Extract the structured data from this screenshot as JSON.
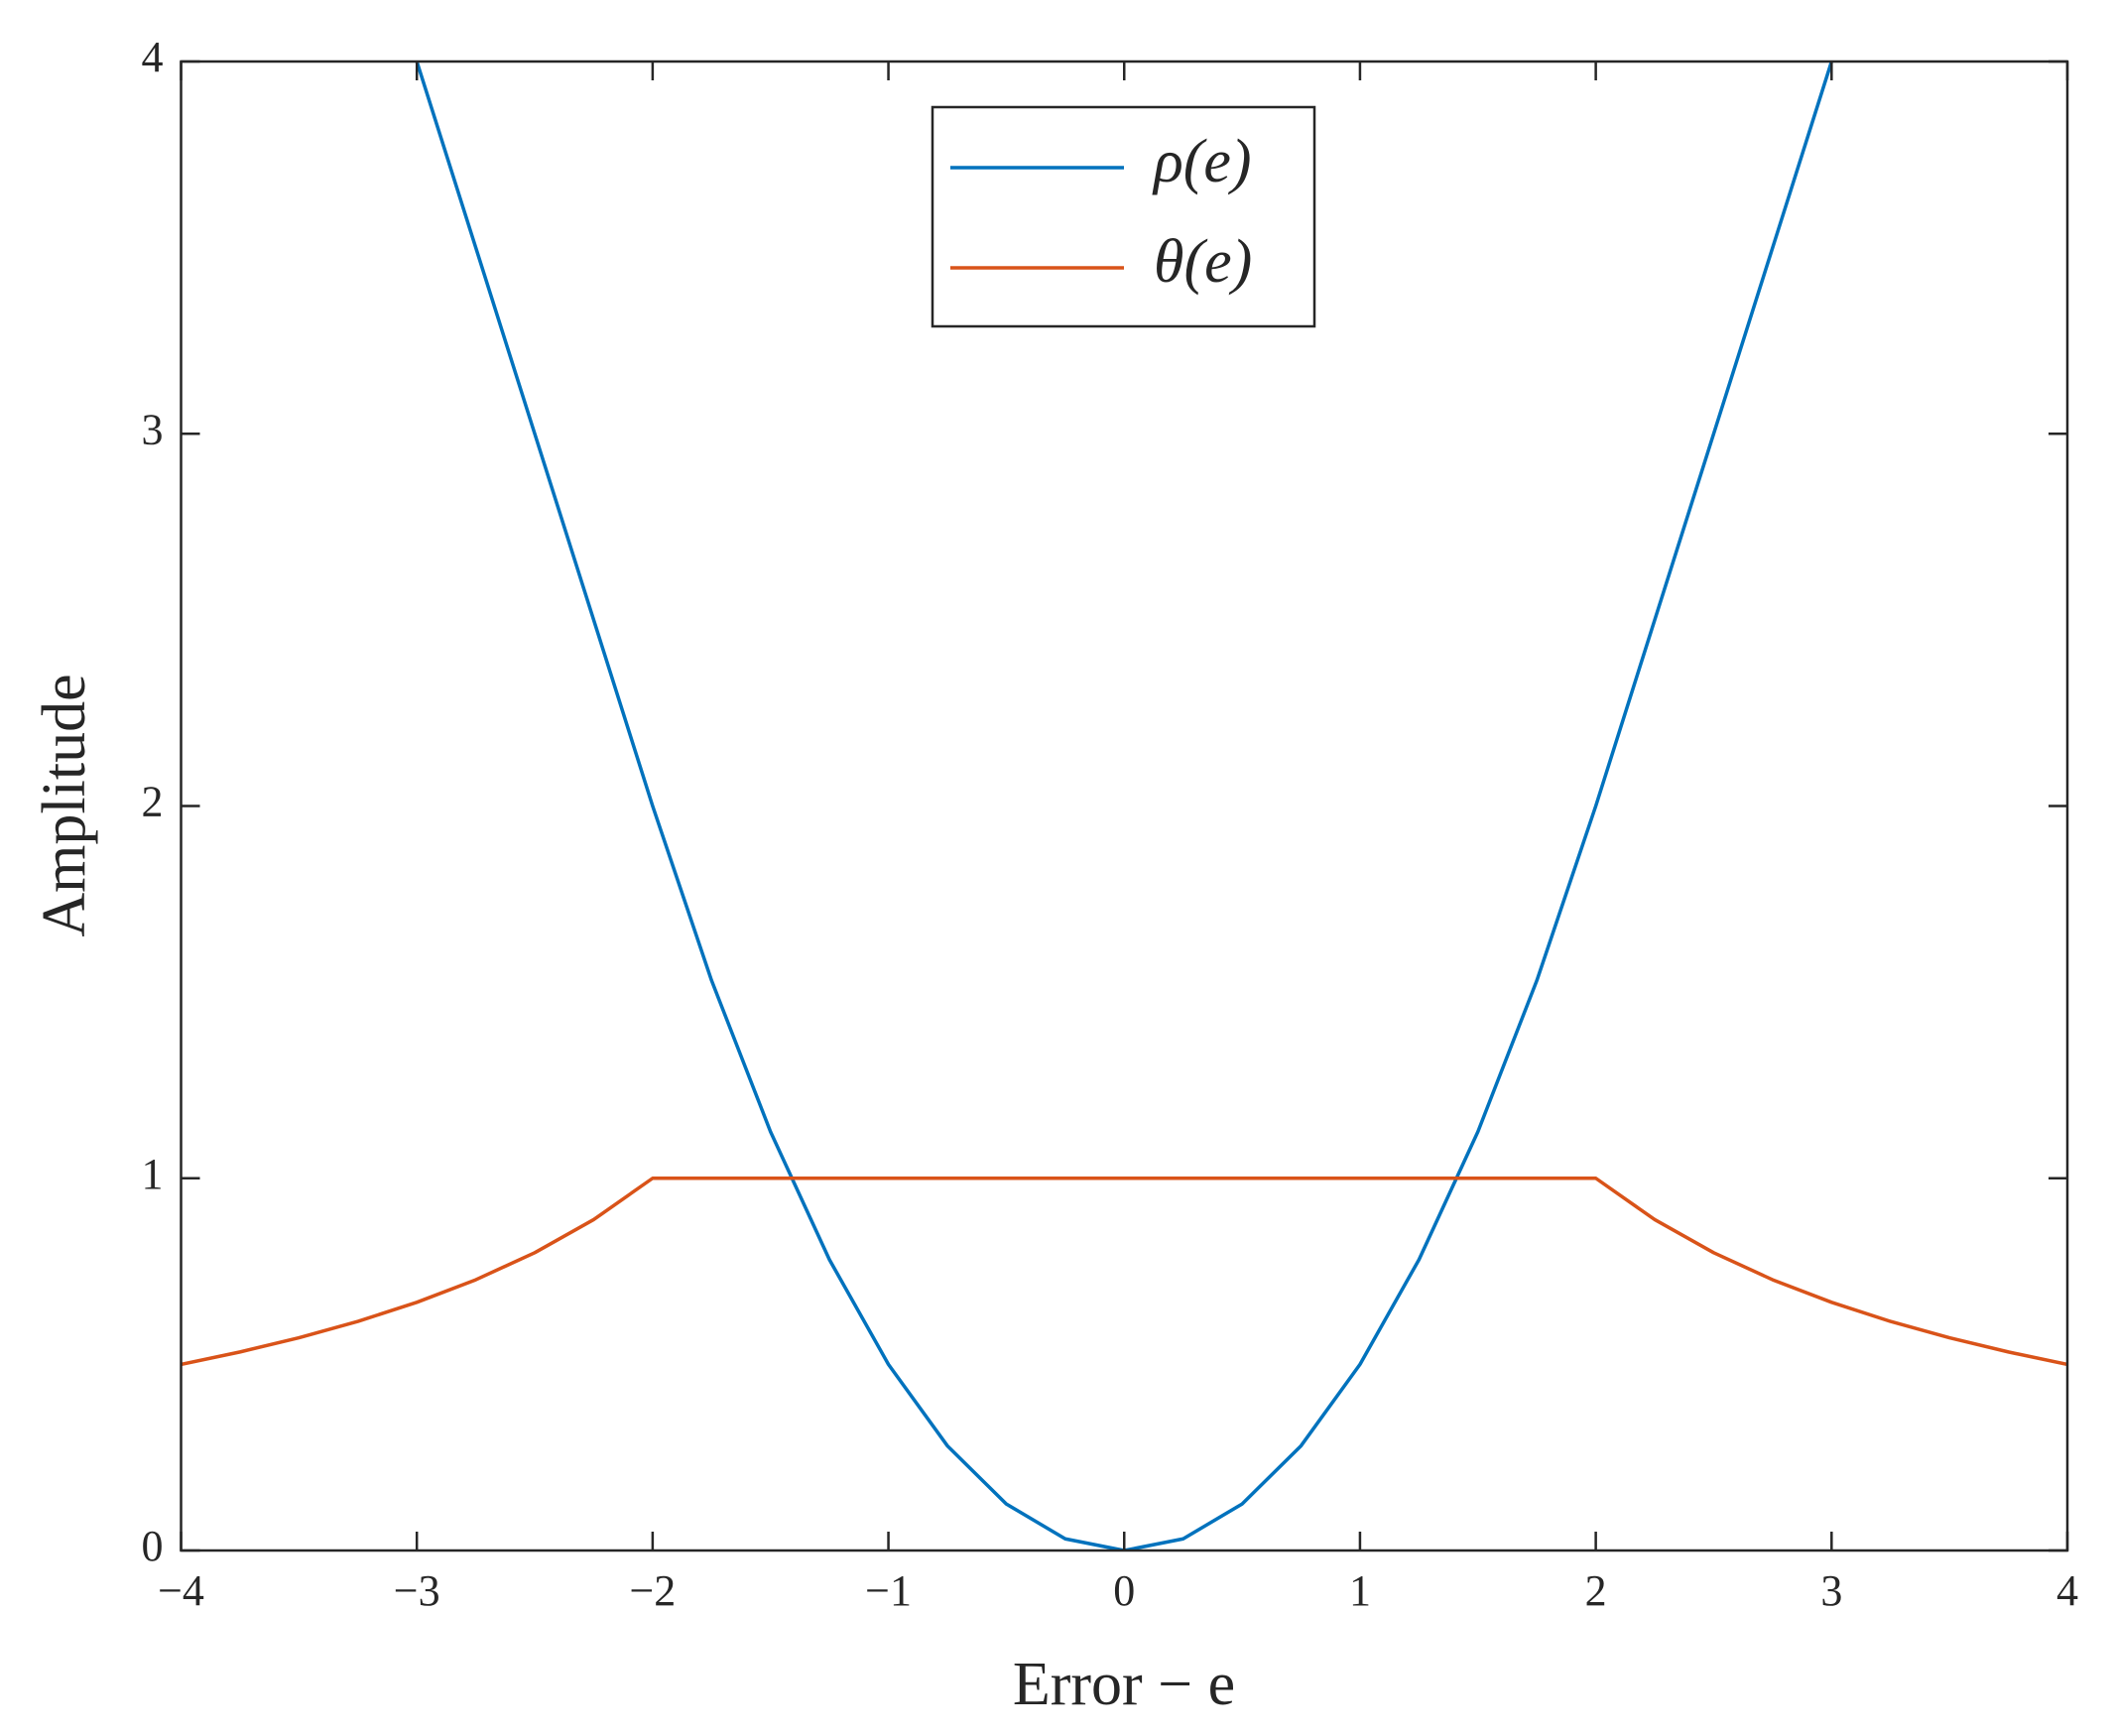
{
  "chart_data": {
    "type": "line",
    "xlabel": "Error − e",
    "ylabel": "Amplitude",
    "x": [
      -4,
      -3.75,
      -3.5,
      -3.25,
      -3,
      -2.75,
      -2.5,
      -2.25,
      -2,
      -1.75,
      -1.5,
      -1.25,
      -1,
      -0.75,
      -0.5,
      -0.25,
      0,
      0.25,
      0.5,
      0.75,
      1,
      1.25,
      1.5,
      1.75,
      2,
      2.25,
      2.5,
      2.75,
      3,
      3.25,
      3.5,
      3.75,
      4
    ],
    "series": [
      {
        "name": "ρ(e)",
        "color": "#0072bd",
        "values": [
          null,
          null,
          null,
          null,
          4,
          3.5,
          3,
          2.5,
          2,
          1.53125,
          1.125,
          0.78125,
          0.5,
          0.28125,
          0.125,
          0.03125,
          0,
          0.03125,
          0.125,
          0.28125,
          0.5,
          0.78125,
          1.125,
          1.53125,
          2,
          2.5,
          3,
          3.5,
          4,
          null,
          null,
          null,
          null
        ]
      },
      {
        "name": "θ(e)",
        "color": "#d95319",
        "values": [
          0.5,
          0.5333,
          0.5714,
          0.6154,
          0.6667,
          0.7273,
          0.8,
          0.8889,
          1,
          1,
          1,
          1,
          1,
          1,
          1,
          1,
          1,
          1,
          1,
          1,
          1,
          1,
          1,
          1,
          1,
          0.8889,
          0.8,
          0.7273,
          0.6667,
          0.6154,
          0.5714,
          0.5333,
          0.5
        ]
      }
    ],
    "xlim": [
      -4,
      4
    ],
    "xticks": [
      {
        "value": -4,
        "label": "−4"
      },
      {
        "value": -3,
        "label": "−3"
      },
      {
        "value": -2,
        "label": "−2"
      },
      {
        "value": -1,
        "label": "−1"
      },
      0,
      1,
      2,
      3,
      4
    ],
    "ylim": [
      0,
      4
    ],
    "yticks": [
      0,
      1,
      2,
      3,
      4
    ],
    "legend": "top-center",
    "grid": false
  }
}
